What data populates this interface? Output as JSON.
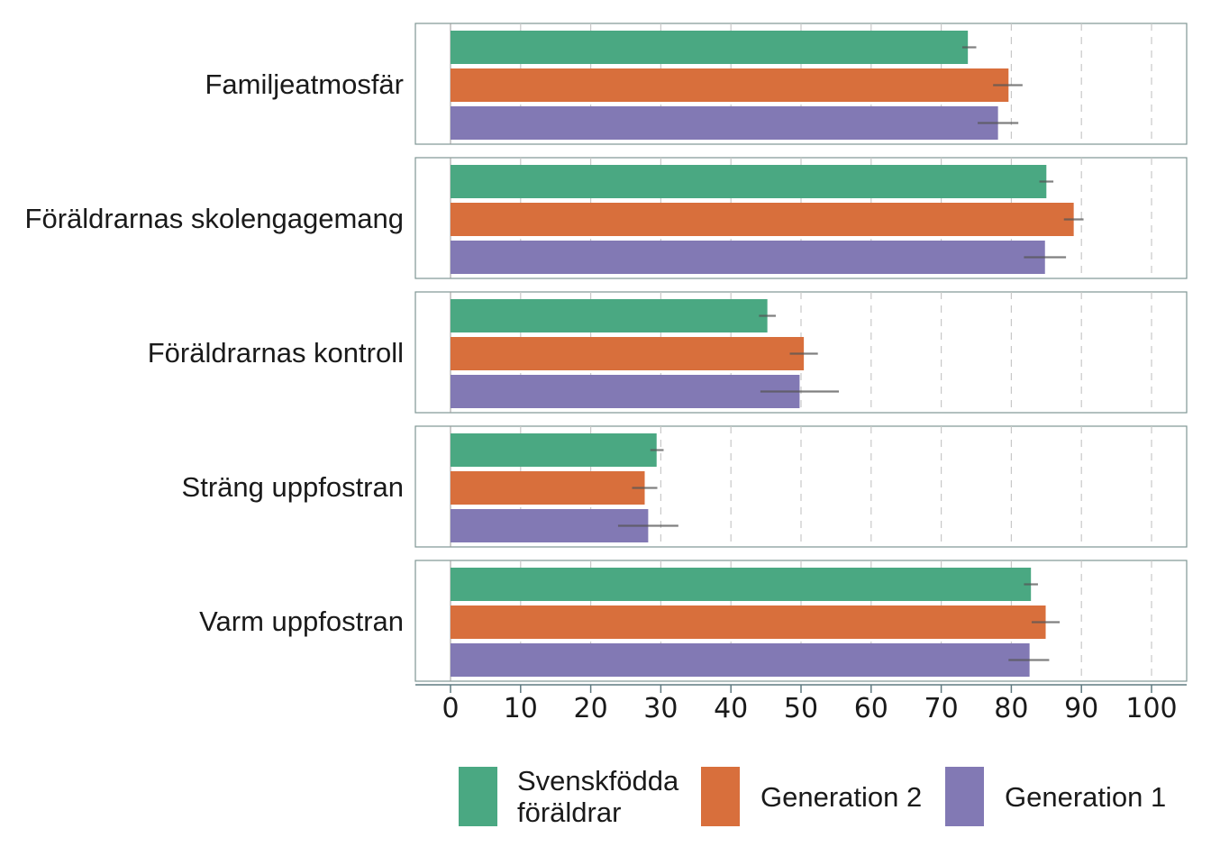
{
  "chart_data": {
    "type": "bar",
    "orientation": "horizontal",
    "categories": [
      "Familjeatmosfär",
      "Föräldrarnas skolengagemang",
      "Föräldrarnas kontroll",
      "Sträng uppfostran",
      "Varm uppfostran"
    ],
    "series": [
      {
        "name": "Svenskfödda föräldrar",
        "name_lines": [
          "Svenskfödda",
          "föräldrar"
        ],
        "color": "#4aa882",
        "values": [
          73.8,
          85.0,
          45.2,
          29.4,
          82.8
        ],
        "error_low": [
          73.0,
          84.0,
          44.0,
          28.5,
          81.8
        ],
        "error_high": [
          75.0,
          86.0,
          46.4,
          30.4,
          83.8
        ]
      },
      {
        "name": "Generation 2",
        "name_lines": [
          "Generation 2"
        ],
        "color": "#d86f3c",
        "values": [
          79.6,
          88.9,
          50.4,
          27.7,
          84.9
        ],
        "error_low": [
          77.4,
          87.5,
          48.4,
          25.9,
          82.9
        ],
        "error_high": [
          81.6,
          90.3,
          52.4,
          29.5,
          86.9
        ]
      },
      {
        "name": "Generation 1",
        "name_lines": [
          "Generation 1"
        ],
        "color": "#8279b4",
        "values": [
          78.1,
          84.8,
          49.8,
          28.2,
          82.6
        ],
        "error_low": [
          75.2,
          81.8,
          44.2,
          23.9,
          79.6
        ],
        "error_high": [
          81.0,
          87.8,
          55.4,
          32.5,
          85.4
        ]
      }
    ],
    "xlim": [
      0,
      100
    ],
    "xticks": [
      0,
      10,
      20,
      30,
      40,
      50,
      60,
      70,
      80,
      90,
      100
    ],
    "xtick_labels": [
      "0",
      "10",
      "20",
      "30",
      "40",
      "50",
      "60",
      "70",
      "80",
      "90",
      "100"
    ],
    "grid": "vertical dashed",
    "legend_position": "bottom"
  }
}
